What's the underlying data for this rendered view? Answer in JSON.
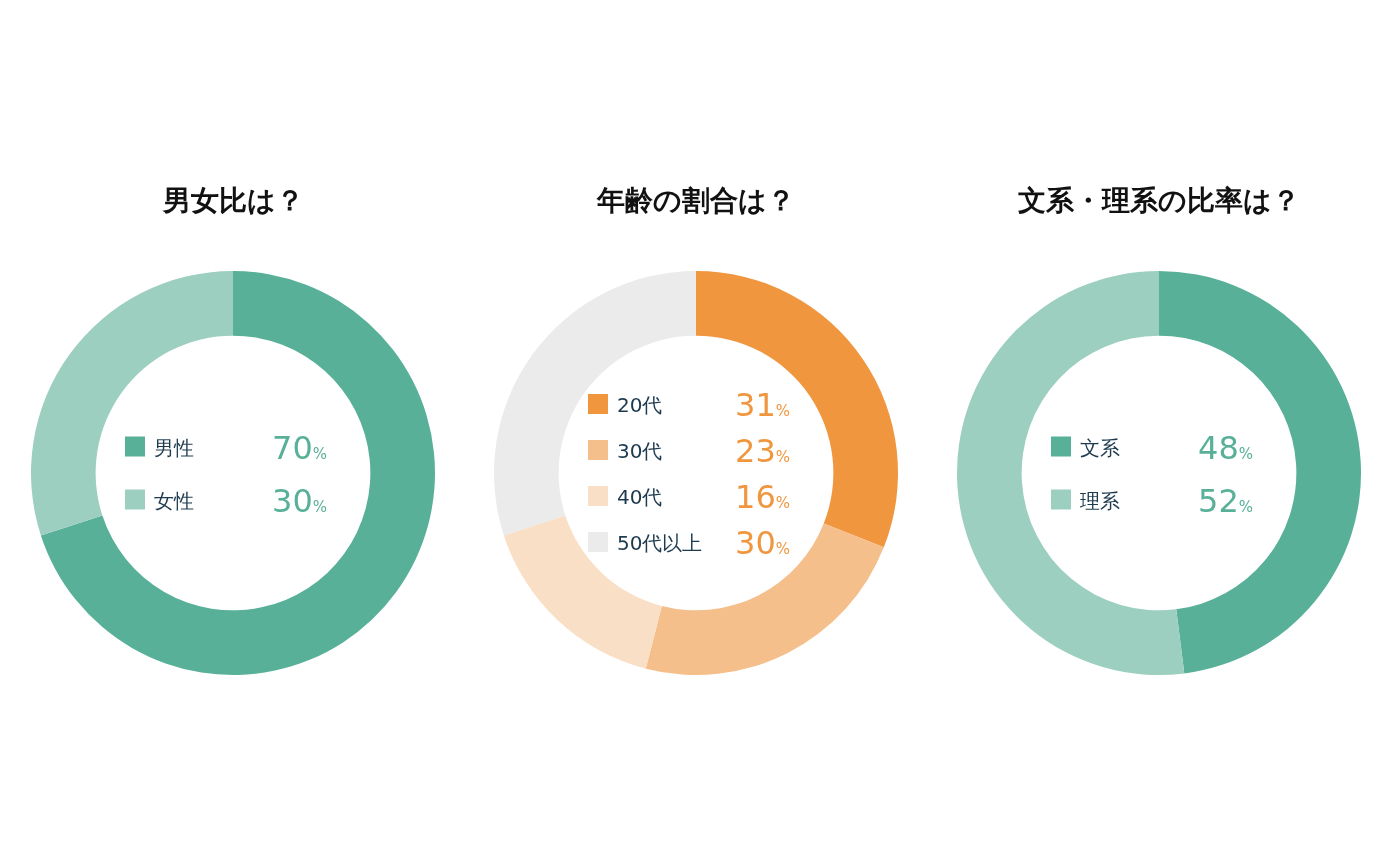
{
  "chart_data": [
    {
      "type": "donut",
      "title": "男女比は？",
      "categories": [
        "男性",
        "女性"
      ],
      "values": [
        70,
        30
      ],
      "value_labels": [
        "70%",
        "30%"
      ],
      "colors": [
        "#58b098",
        "#9ccfbf"
      ],
      "legend": "center"
    },
    {
      "type": "donut",
      "title": "年齢の割合は？",
      "categories": [
        "20代",
        "30代",
        "40代",
        "50代以上"
      ],
      "values": [
        31,
        23,
        16,
        30
      ],
      "value_labels": [
        "31%",
        "23%",
        "16%",
        "30%"
      ],
      "colors": [
        "#f0963f",
        "#f5bf8b",
        "#f9dfc5",
        "#ebebeb"
      ],
      "legend": "center"
    },
    {
      "type": "donut",
      "title": "文系・理系の比率は？",
      "categories": [
        "文系",
        "理系"
      ],
      "values": [
        48,
        52
      ],
      "value_labels": [
        "48%",
        "52%"
      ],
      "colors": [
        "#58b098",
        "#9ccfbf"
      ],
      "legend": "center"
    }
  ]
}
